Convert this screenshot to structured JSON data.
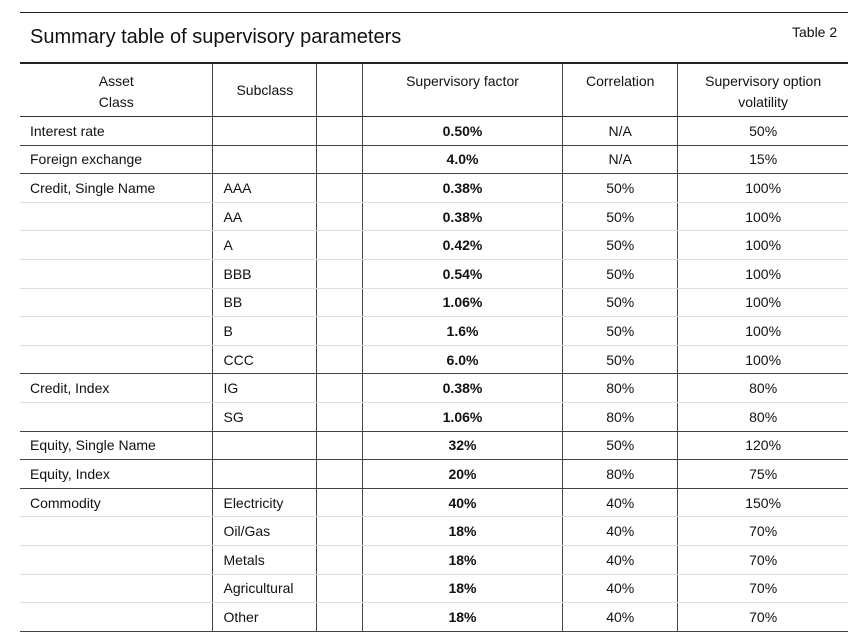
{
  "header": {
    "title": "Summary table of supervisory parameters",
    "table_label": "Table 2"
  },
  "columns": {
    "asset_class": [
      "Asset",
      "Class"
    ],
    "subclass": "Subclass",
    "factor": "Supervisory factor",
    "correlation": "Correlation",
    "volatility": [
      "Supervisory option",
      "volatility"
    ]
  },
  "rows": [
    {
      "asset": "Interest rate",
      "sub": "",
      "factor": "0.50%",
      "corr": "N/A",
      "vol": "50%"
    },
    {
      "asset": "Foreign exchange",
      "sub": "",
      "factor": "4.0%",
      "corr": "N/A",
      "vol": "15%"
    },
    {
      "asset": "Credit, Single Name",
      "sub": "AAA",
      "factor": "0.38%",
      "corr": "50%",
      "vol": "100%"
    },
    {
      "asset": "",
      "sub": "AA",
      "factor": "0.38%",
      "corr": "50%",
      "vol": "100%"
    },
    {
      "asset": "",
      "sub": "A",
      "factor": "0.42%",
      "corr": "50%",
      "vol": "100%"
    },
    {
      "asset": "",
      "sub": "BBB",
      "factor": "0.54%",
      "corr": "50%",
      "vol": "100%"
    },
    {
      "asset": "",
      "sub": "BB",
      "factor": "1.06%",
      "corr": "50%",
      "vol": "100%"
    },
    {
      "asset": "",
      "sub": "B",
      "factor": "1.6%",
      "corr": "50%",
      "vol": "100%"
    },
    {
      "asset": "",
      "sub": "CCC",
      "factor": "6.0%",
      "corr": "50%",
      "vol": "100%"
    },
    {
      "asset": "Credit, Index",
      "sub": "IG",
      "factor": "0.38%",
      "corr": "80%",
      "vol": "80%"
    },
    {
      "asset": "",
      "sub": "SG",
      "factor": "1.06%",
      "corr": "80%",
      "vol": "80%"
    },
    {
      "asset": "Equity, Single Name",
      "sub": "",
      "factor": "32%",
      "corr": "50%",
      "vol": "120%"
    },
    {
      "asset": "Equity, Index",
      "sub": "",
      "factor": "20%",
      "corr": "80%",
      "vol": "75%"
    },
    {
      "asset": "Commodity",
      "sub": "Electricity",
      "factor": "40%",
      "corr": "40%",
      "vol": "150%"
    },
    {
      "asset": "",
      "sub": "Oil/Gas",
      "factor": "18%",
      "corr": "40%",
      "vol": "70%"
    },
    {
      "asset": "",
      "sub": "Metals",
      "factor": "18%",
      "corr": "40%",
      "vol": "70%"
    },
    {
      "asset": "",
      "sub": "Agricultural",
      "factor": "18%",
      "corr": "40%",
      "vol": "70%"
    },
    {
      "asset": "",
      "sub": "Other",
      "factor": "18%",
      "corr": "40%",
      "vol": "70%"
    }
  ]
}
